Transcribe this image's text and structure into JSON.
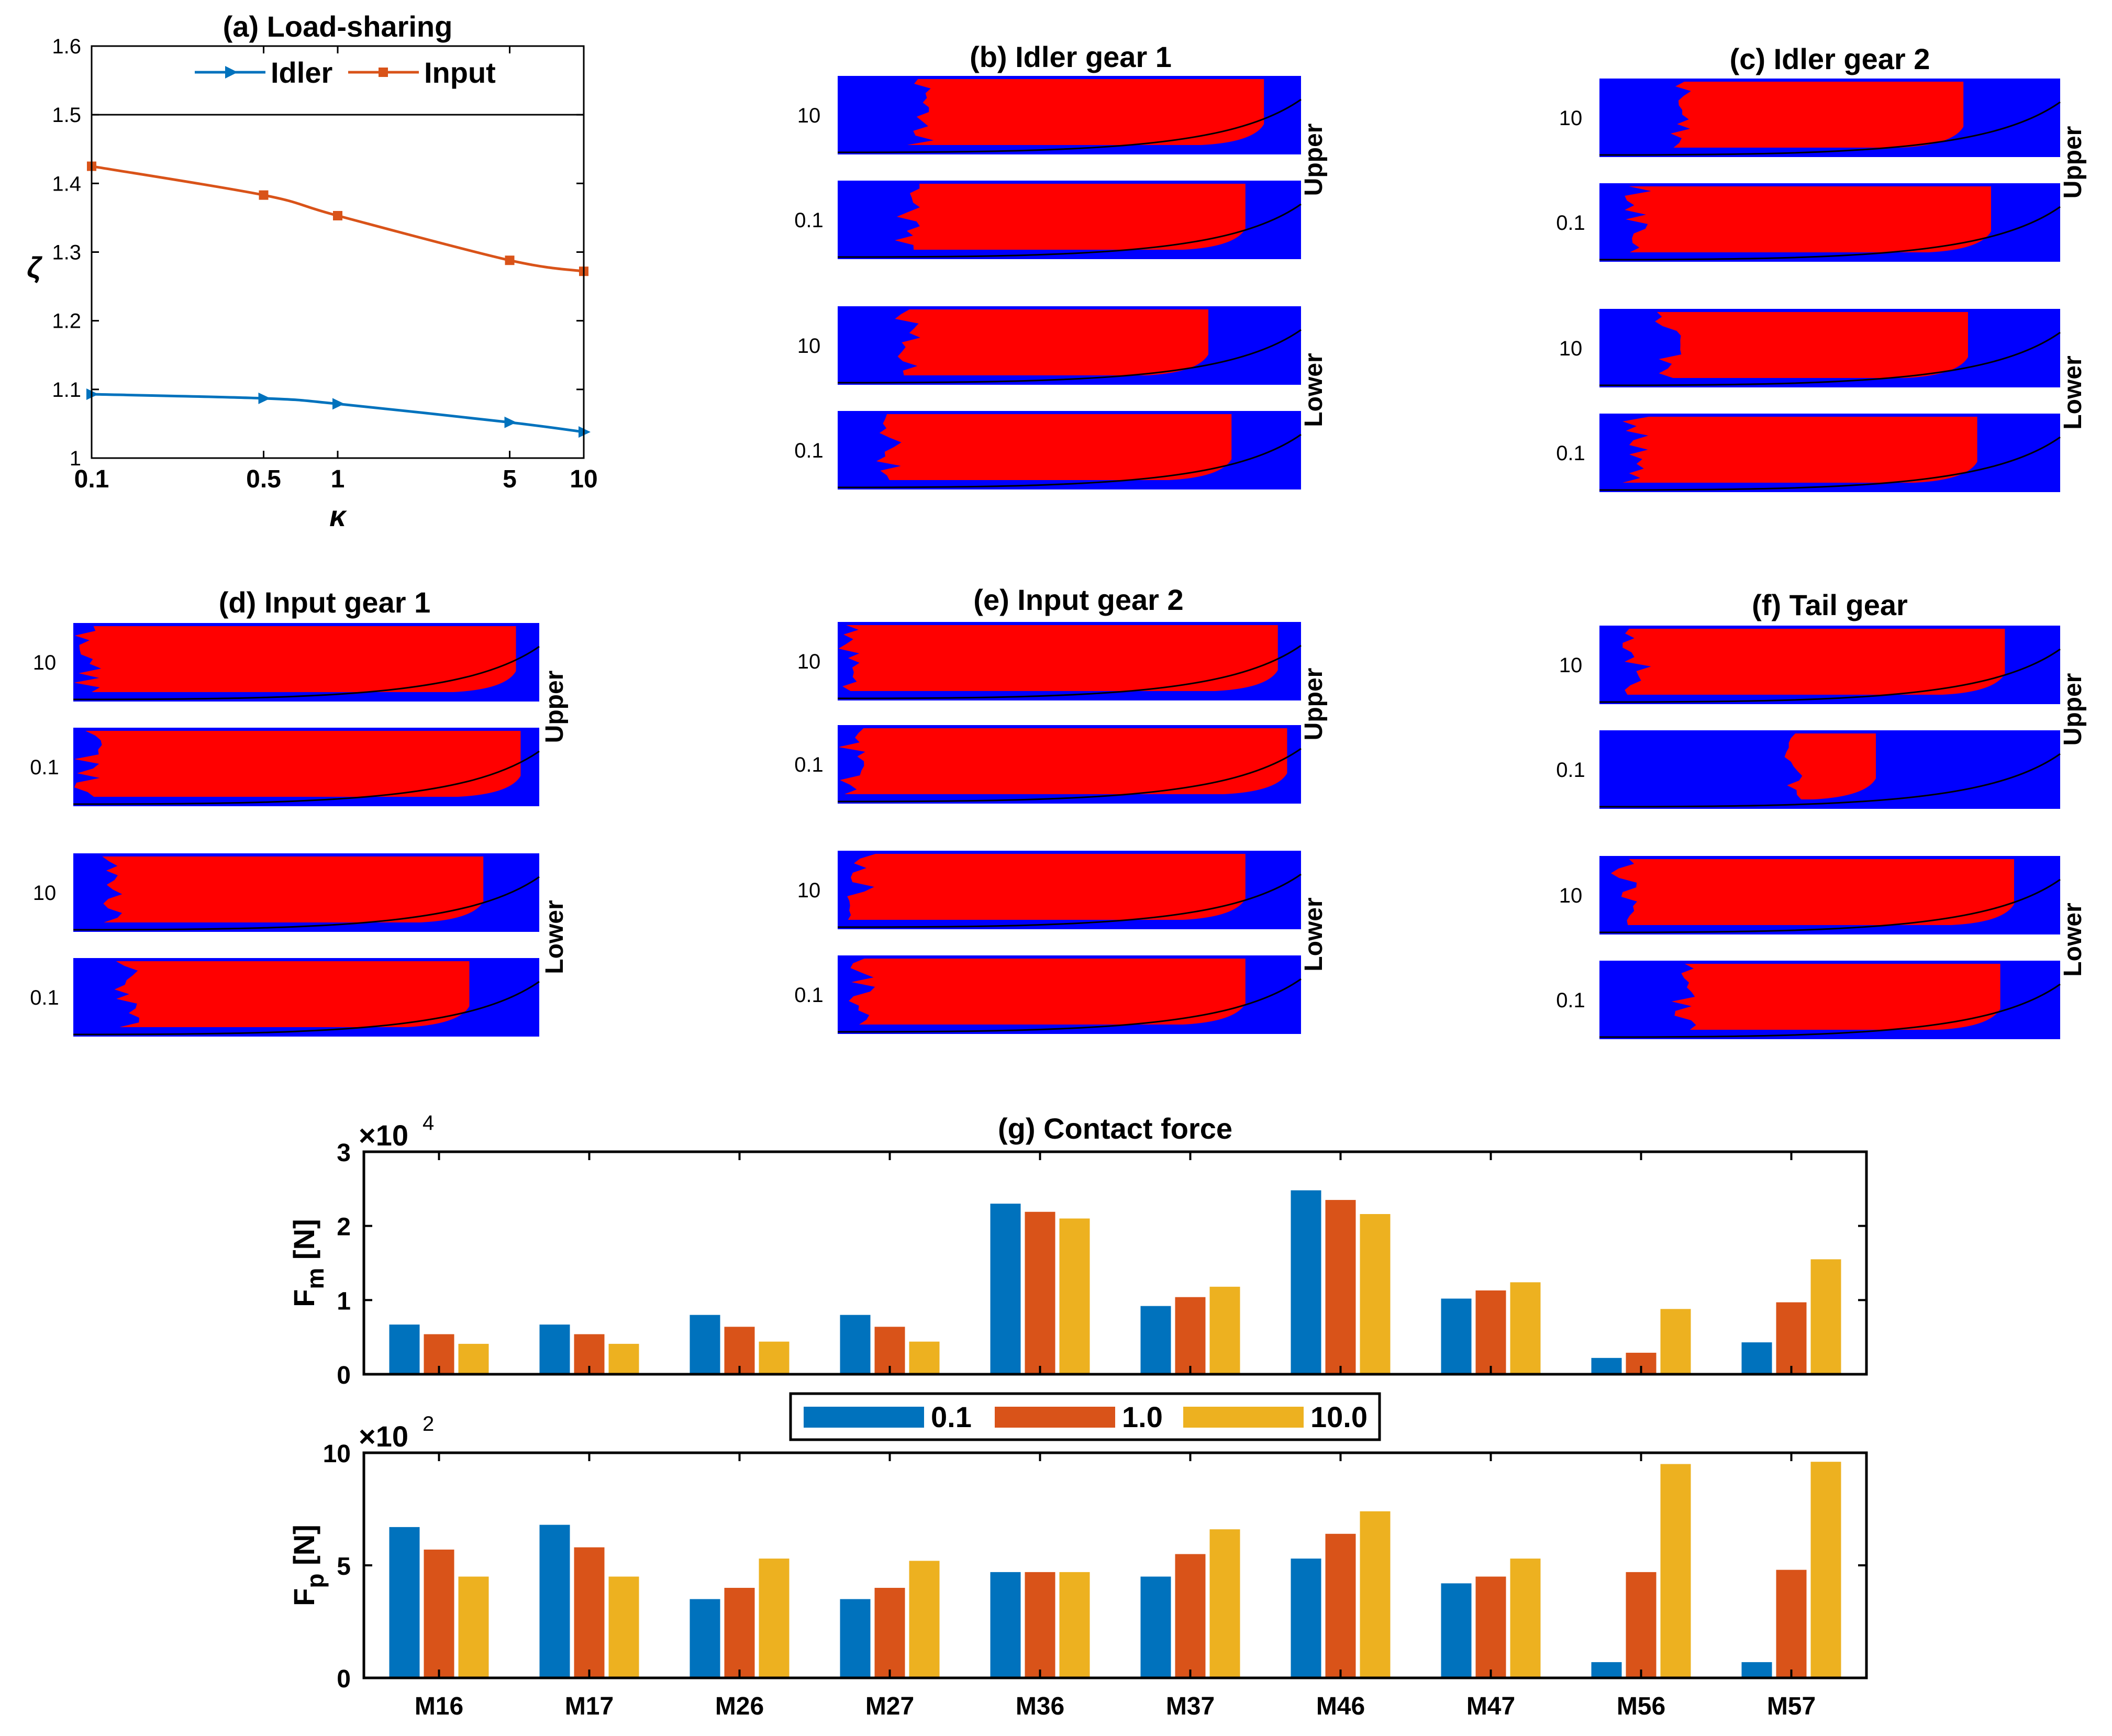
{
  "colors": {
    "idler": "#0072BD",
    "input": "#D95319",
    "kappa_01": "#0072BD",
    "kappa_1": "#D95319",
    "kappa_10": "#EDB120",
    "contact": "#FF0000",
    "no_contact": "#0000FF"
  },
  "chart_data": [
    {
      "id": "a",
      "type": "line",
      "title": "(a) Load-sharing",
      "xlabel": "κ",
      "ylabel": "ζ",
      "xscale": "log",
      "xlim": [
        0.1,
        10
      ],
      "ylim": [
        1.0,
        1.6
      ],
      "xticks": [
        0.1,
        0.5,
        1,
        5,
        10
      ],
      "xtick_labels": [
        "0.1",
        "0.5",
        "1",
        "5",
        "10"
      ],
      "yticks": [
        1.0,
        1.1,
        1.2,
        1.3,
        1.4,
        1.5,
        1.6
      ],
      "ytick_labels": [
        "1",
        "1.1",
        "1.2",
        "1.3",
        "1.4",
        "1.5",
        "1.6"
      ],
      "reference_line": 1.5,
      "legend_position": "top",
      "series": [
        {
          "name": "Idler",
          "marker": "triangle",
          "x": [
            0.1,
            0.5,
            1,
            5,
            10
          ],
          "values": [
            1.093,
            1.087,
            1.079,
            1.052,
            1.038
          ]
        },
        {
          "name": "Input",
          "marker": "square",
          "x": [
            0.1,
            0.5,
            1,
            5,
            10
          ],
          "values": [
            1.425,
            1.383,
            1.353,
            1.288,
            1.272
          ]
        }
      ]
    },
    {
      "id": "g",
      "type": "bar",
      "title": "(g) Contact force",
      "categories": [
        "M16",
        "M17",
        "M26",
        "M27",
        "M36",
        "M37",
        "M46",
        "M47",
        "M56",
        "M57"
      ],
      "legend": [
        "0.1",
        "1.0",
        "10.0"
      ],
      "subplots": [
        {
          "ylabel_main": "F",
          "ylabel_sub": "m",
          "ylabel_unit": "[N]",
          "exponent_base": "×10",
          "exponent_power": "4",
          "ylim": [
            0,
            3
          ],
          "yticks": [
            0,
            1,
            2,
            3
          ],
          "series": [
            {
              "name": "0.1",
              "values": [
                0.67,
                0.67,
                0.8,
                0.8,
                2.3,
                0.92,
                2.48,
                1.02,
                0.22,
                0.43
              ]
            },
            {
              "name": "1.0",
              "values": [
                0.54,
                0.54,
                0.64,
                0.64,
                2.19,
                1.04,
                2.35,
                1.13,
                0.29,
                0.97
              ]
            },
            {
              "name": "10.0",
              "values": [
                0.41,
                0.41,
                0.44,
                0.44,
                2.1,
                1.18,
                2.16,
                1.24,
                0.88,
                1.55
              ]
            }
          ]
        },
        {
          "ylabel_main": "F",
          "ylabel_sub": "p",
          "ylabel_unit": "[N]",
          "exponent_base": "×10",
          "exponent_power": "2",
          "ylim": [
            0,
            10
          ],
          "yticks": [
            0,
            5,
            10
          ],
          "series": [
            {
              "name": "0.1",
              "values": [
                6.7,
                6.8,
                3.5,
                3.5,
                4.7,
                4.5,
                5.3,
                4.2,
                0.7,
                0.7
              ]
            },
            {
              "name": "1.0",
              "values": [
                5.7,
                5.8,
                4.0,
                4.0,
                4.7,
                5.5,
                6.4,
                4.5,
                4.7,
                4.8
              ]
            },
            {
              "name": "10.0",
              "values": [
                4.5,
                4.5,
                5.3,
                5.2,
                4.7,
                6.6,
                7.4,
                5.3,
                9.5,
                9.6
              ]
            }
          ]
        }
      ]
    },
    {
      "type": "heatmap",
      "description": "Contact pattern maps (red = contact, blue = no contact)",
      "panels": [
        {
          "id": "b",
          "title": "(b) Idler gear 1",
          "rows": [
            "10",
            "0.1",
            "10",
            "0.1"
          ],
          "side_labels": [
            "Upper",
            "Lower"
          ],
          "contact_extent": [
            [
              0.15,
              0.92
            ],
            [
              0.12,
              0.88
            ],
            [
              0.12,
              0.8
            ],
            [
              0.08,
              0.85
            ]
          ]
        },
        {
          "id": "c",
          "title": "(c) Idler gear 2",
          "rows": [
            "10",
            "0.1",
            "10",
            "0.1"
          ],
          "side_labels": [
            "Upper",
            "Lower"
          ],
          "contact_extent": [
            [
              0.14,
              0.79
            ],
            [
              0.05,
              0.85
            ],
            [
              0.12,
              0.8
            ],
            [
              0.05,
              0.82
            ]
          ]
        },
        {
          "id": "d",
          "title": "(d) Input gear 1",
          "rows": [
            "10",
            "0.1",
            "10",
            "0.1"
          ],
          "side_labels": [
            "Upper",
            "Lower"
          ],
          "contact_extent": [
            [
              0.0,
              0.95
            ],
            [
              0.0,
              0.96
            ],
            [
              0.05,
              0.88
            ],
            [
              0.08,
              0.85
            ]
          ]
        },
        {
          "id": "e",
          "title": "(e) Input gear 2",
          "rows": [
            "10",
            "0.1",
            "10",
            "0.1"
          ],
          "side_labels": [
            "Upper",
            "Lower"
          ],
          "contact_extent": [
            [
              0.0,
              0.95
            ],
            [
              0.0,
              0.97
            ],
            [
              0.02,
              0.88
            ],
            [
              0.02,
              0.88
            ]
          ]
        },
        {
          "id": "f",
          "title": "(f) Tail gear",
          "rows": [
            "10",
            "0.1",
            "10",
            "0.1"
          ],
          "side_labels": [
            "Upper",
            "Lower"
          ],
          "contact_extent": [
            [
              0.05,
              0.88
            ],
            [
              0.38,
              0.6
            ],
            [
              0.02,
              0.9
            ],
            [
              0.15,
              0.87
            ]
          ]
        }
      ]
    }
  ]
}
